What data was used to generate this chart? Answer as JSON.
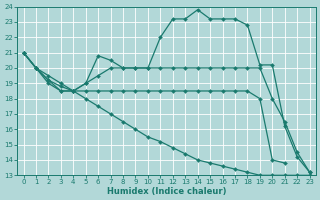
{
  "xlabel": "Humidex (Indice chaleur)",
  "xlim": [
    -0.5,
    23.5
  ],
  "ylim": [
    13,
    24
  ],
  "xticks": [
    0,
    1,
    2,
    3,
    4,
    5,
    6,
    7,
    8,
    9,
    10,
    11,
    12,
    13,
    14,
    15,
    16,
    17,
    18,
    19,
    20,
    21,
    22,
    23
  ],
  "yticks": [
    13,
    14,
    15,
    16,
    17,
    18,
    19,
    20,
    21,
    22,
    23,
    24
  ],
  "background_color": "#b2d8d8",
  "grid_color": "#d0e8e8",
  "line_color": "#1a7a6e",
  "line1_x": [
    0,
    1,
    2,
    3,
    4,
    5,
    6,
    7,
    8,
    9,
    10,
    11,
    12,
    13,
    14,
    15,
    16,
    17,
    18,
    19,
    20,
    21,
    22,
    23
  ],
  "line1_y": [
    21,
    20,
    19,
    18.5,
    18.5,
    19.0,
    20.8,
    20.5,
    20.0,
    20.0,
    20.0,
    22.0,
    23.2,
    23.2,
    23.8,
    23.2,
    23.2,
    23.2,
    22.8,
    20.2,
    20.2,
    16.2,
    14.2,
    13.2
  ],
  "line2_x": [
    0,
    1,
    2,
    3,
    4,
    5,
    6,
    7,
    8,
    9,
    10,
    11,
    12,
    13,
    14,
    15,
    16,
    17,
    18,
    19,
    20,
    21,
    22,
    23
  ],
  "line2_y": [
    21,
    20,
    19.2,
    18.5,
    18.5,
    19.0,
    19.5,
    20.0,
    20.0,
    20.0,
    20.0,
    20.0,
    20.0,
    20.0,
    20.0,
    20.0,
    20.0,
    20.0,
    20.0,
    20.0,
    18.0,
    16.5,
    14.5,
    13.2
  ],
  "line3_x": [
    0,
    1,
    2,
    3,
    4,
    5,
    6,
    7,
    8,
    9,
    10,
    11,
    12,
    13,
    14,
    15,
    16,
    17,
    18,
    19,
    20,
    21
  ],
  "line3_y": [
    21,
    20,
    19.2,
    18.8,
    18.5,
    18.5,
    18.5,
    18.5,
    18.5,
    18.5,
    18.5,
    18.5,
    18.5,
    18.5,
    18.5,
    18.5,
    18.5,
    18.5,
    18.5,
    18.0,
    14.0,
    13.8
  ],
  "line4_x": [
    0,
    1,
    2,
    3,
    4,
    5,
    6,
    7,
    8,
    9,
    10,
    11,
    12,
    13,
    14,
    15,
    16,
    17,
    18,
    19,
    20,
    21,
    22,
    23
  ],
  "line4_y": [
    21,
    20.0,
    19.5,
    19.0,
    18.5,
    18.0,
    17.5,
    17.0,
    16.5,
    16.0,
    15.5,
    15.2,
    14.8,
    14.4,
    14.0,
    13.8,
    13.6,
    13.4,
    13.2,
    13.0,
    13.0,
    13.0,
    13.0,
    13.0
  ]
}
